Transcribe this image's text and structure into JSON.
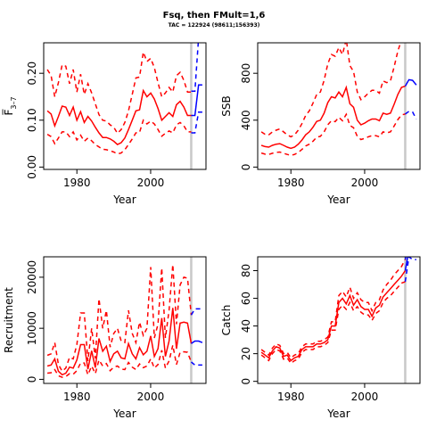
{
  "title": "Fsq, then FMult=1,6",
  "subtitle": "TAC = 122924 (98611;156393)",
  "colors": {
    "history": "#ff0000",
    "projection": "#0000ff",
    "divider": "#c8c8c8"
  },
  "chart_data": [
    {
      "type": "line",
      "id": "fbar",
      "xlabel": "Year",
      "ylabel": "F̅",
      "ylabel_sub": "3–7",
      "xlim": [
        1971,
        2015
      ],
      "ylim": [
        -0.005,
        0.265
      ],
      "x_ticks": [
        1980,
        2000
      ],
      "y_ticks": [
        0.0,
        0.1,
        0.2
      ],
      "y_tick_labels": [
        "0.00",
        "0.10",
        "0.20"
      ],
      "divider_x": 2011,
      "history": {
        "x": [
          1972,
          1973,
          1974,
          1975,
          1976,
          1977,
          1978,
          1979,
          1980,
          1981,
          1982,
          1983,
          1984,
          1985,
          1986,
          1987,
          1988,
          1989,
          1990,
          1991,
          1992,
          1993,
          1994,
          1995,
          1996,
          1997,
          1998,
          1999,
          2000,
          2001,
          2002,
          2003,
          2004,
          2005,
          2006,
          2007,
          2008,
          2009,
          2010,
          2011
        ],
        "mid": [
          0.12,
          0.113,
          0.088,
          0.108,
          0.13,
          0.128,
          0.11,
          0.128,
          0.1,
          0.118,
          0.095,
          0.108,
          0.098,
          0.085,
          0.073,
          0.063,
          0.063,
          0.06,
          0.055,
          0.048,
          0.052,
          0.062,
          0.08,
          0.1,
          0.12,
          0.122,
          0.163,
          0.15,
          0.158,
          0.145,
          0.125,
          0.1,
          0.108,
          0.116,
          0.108,
          0.133,
          0.14,
          0.128,
          0.11,
          0.11
        ],
        "lower": [
          0.07,
          0.065,
          0.05,
          0.062,
          0.075,
          0.075,
          0.065,
          0.075,
          0.058,
          0.068,
          0.055,
          0.062,
          0.056,
          0.048,
          0.043,
          0.038,
          0.037,
          0.035,
          0.032,
          0.028,
          0.03,
          0.037,
          0.048,
          0.06,
          0.073,
          0.074,
          0.1,
          0.092,
          0.098,
          0.092,
          0.08,
          0.066,
          0.072,
          0.077,
          0.073,
          0.09,
          0.095,
          0.088,
          0.075,
          0.075
        ],
        "upper": [
          0.208,
          0.195,
          0.15,
          0.18,
          0.218,
          0.215,
          0.178,
          0.208,
          0.16,
          0.198,
          0.155,
          0.178,
          0.158,
          0.135,
          0.112,
          0.1,
          0.098,
          0.09,
          0.085,
          0.072,
          0.08,
          0.095,
          0.12,
          0.155,
          0.19,
          0.192,
          0.245,
          0.225,
          0.232,
          0.212,
          0.18,
          0.15,
          0.158,
          0.17,
          0.16,
          0.195,
          0.202,
          0.185,
          0.16,
          0.16
        ]
      },
      "projection": {
        "x": [
          2011,
          2012,
          2013,
          2014
        ],
        "mid": [
          0.11,
          0.11,
          0.175,
          0.175
        ],
        "lower": [
          0.073,
          0.073,
          0.117,
          0.117
        ],
        "upper": [
          0.162,
          0.162,
          0.275,
          0.275
        ]
      }
    },
    {
      "type": "line",
      "id": "ssb",
      "xlabel": "Year",
      "ylabel": "SSB",
      "xlim": [
        1971,
        2015
      ],
      "ylim": [
        -20,
        1060
      ],
      "x_ticks": [
        1980,
        2000
      ],
      "y_ticks": [
        0,
        400,
        800
      ],
      "y_tick_labels": [
        "0",
        "400",
        "800"
      ],
      "divider_x": 2011,
      "history": {
        "x": [
          1972,
          1973,
          1974,
          1975,
          1976,
          1977,
          1978,
          1979,
          1980,
          1981,
          1982,
          1983,
          1984,
          1985,
          1986,
          1987,
          1988,
          1989,
          1990,
          1991,
          1992,
          1993,
          1994,
          1995,
          1996,
          1997,
          1998,
          1999,
          2000,
          2001,
          2002,
          2003,
          2004,
          2005,
          2006,
          2007,
          2008,
          2009,
          2010,
          2011
        ],
        "mid": [
          185,
          175,
          170,
          185,
          195,
          200,
          185,
          170,
          160,
          170,
          195,
          230,
          275,
          300,
          340,
          390,
          400,
          460,
          550,
          600,
          590,
          640,
          600,
          680,
          540,
          510,
          400,
          360,
          375,
          395,
          410,
          410,
          395,
          460,
          450,
          460,
          535,
          620,
          680,
          690
        ],
        "lower": [
          120,
          110,
          108,
          118,
          125,
          128,
          118,
          108,
          100,
          108,
          125,
          150,
          180,
          195,
          220,
          255,
          262,
          300,
          360,
          395,
          388,
          425,
          395,
          450,
          355,
          335,
          262,
          235,
          245,
          258,
          268,
          268,
          258,
          300,
          292,
          300,
          350,
          405,
          445,
          452
        ],
        "upper": [
          300,
          280,
          275,
          300,
          315,
          325,
          300,
          275,
          258,
          275,
          315,
          370,
          440,
          480,
          545,
          620,
          640,
          740,
          880,
          960,
          945,
          1020,
          960,
          1090,
          865,
          815,
          640,
          575,
          600,
          630,
          655,
          655,
          630,
          735,
          720,
          735,
          855,
          990,
          1085,
          1100
        ]
      },
      "projection": {
        "x": [
          2011,
          2012,
          2013,
          2014
        ],
        "mid": [
          690,
          745,
          740,
          700
        ],
        "lower": [
          452,
          475,
          470,
          410
        ],
        "upper": [
          1100,
          1200,
          1200,
          1150
        ]
      }
    },
    {
      "type": "line",
      "id": "recruitment",
      "xlabel": "Year",
      "ylabel": "Recruitment",
      "xlim": [
        1971,
        2015
      ],
      "ylim": [
        -800,
        24000
      ],
      "x_ticks": [
        1980,
        2000
      ],
      "y_ticks": [
        0,
        10000,
        20000
      ],
      "y_tick_labels": [
        "0",
        "10000",
        "20000"
      ],
      "divider_x": 2011,
      "history": {
        "x": [
          1972,
          1973,
          1974,
          1975,
          1976,
          1977,
          1978,
          1979,
          1980,
          1981,
          1982,
          1983,
          1984,
          1985,
          1986,
          1987,
          1988,
          1989,
          1990,
          1991,
          1992,
          1993,
          1994,
          1995,
          1996,
          1997,
          1998,
          1999,
          2000,
          2001,
          2002,
          2003,
          2004,
          2005,
          2006,
          2007,
          2008,
          2009,
          2010,
          2011
        ],
        "mid": [
          2600,
          2800,
          4000,
          1600,
          900,
          1200,
          2400,
          2200,
          3800,
          6800,
          6800,
          2000,
          5600,
          2300,
          8000,
          5500,
          6500,
          3500,
          5000,
          5500,
          4200,
          4000,
          7000,
          5000,
          4000,
          6200,
          4800,
          5500,
          8500,
          4500,
          6000,
          12000,
          4500,
          7500,
          14000,
          6000,
          11000,
          11200,
          11000,
          7000
        ],
        "lower": [
          1200,
          1300,
          1900,
          700,
          400,
          550,
          1100,
          1000,
          1700,
          3200,
          3200,
          900,
          2600,
          1100,
          3800,
          2600,
          3100,
          1700,
          2400,
          2600,
          2000,
          1900,
          3300,
          2400,
          1900,
          3000,
          2300,
          2600,
          4000,
          2200,
          2900,
          5700,
          2200,
          3600,
          6700,
          2900,
          5300,
          5400,
          5300,
          3400
        ],
        "upper": [
          4700,
          5000,
          7200,
          2900,
          1600,
          2200,
          4300,
          4000,
          6800,
          13000,
          13000,
          3600,
          10000,
          4100,
          15800,
          10000,
          13500,
          6300,
          9000,
          10000,
          7500,
          7200,
          13500,
          9000,
          7200,
          11200,
          8600,
          10000,
          22000,
          8100,
          10800,
          21800,
          8100,
          13500,
          22500,
          10800,
          18500,
          20000,
          19800,
          12600
        ]
      },
      "projection": {
        "x": [
          2011,
          2012,
          2013,
          2014
        ],
        "mid": [
          7000,
          7500,
          7500,
          7200
        ],
        "lower": [
          3400,
          2800,
          2800,
          2800
        ],
        "upper": [
          12600,
          13800,
          13800,
          13800
        ]
      }
    },
    {
      "type": "line",
      "id": "catch",
      "xlabel": "Year",
      "ylabel": "Catch",
      "xlim": [
        1971,
        2015
      ],
      "ylim": [
        -1.5,
        90
      ],
      "x_ticks": [
        1980,
        2000
      ],
      "y_ticks": [
        0,
        20,
        40,
        60,
        80
      ],
      "y_tick_labels": [
        "0",
        "20",
        "40",
        "60",
        "80"
      ],
      "divider_x": 2011,
      "history": {
        "x": [
          1972,
          1973,
          1974,
          1975,
          1976,
          1977,
          1978,
          1979,
          1980,
          1981,
          1982,
          1983,
          1984,
          1985,
          1986,
          1987,
          1988,
          1989,
          1990,
          1991,
          1992,
          1993,
          1994,
          1995,
          1996,
          1997,
          1998,
          1999,
          2000,
          2001,
          2002,
          2003,
          2004,
          2005,
          2006,
          2007,
          2008,
          2009,
          2010,
          2011
        ],
        "mid": [
          21,
          19,
          17,
          22,
          25,
          24,
          18,
          19,
          15,
          17,
          18,
          23,
          25,
          25,
          25,
          27,
          27,
          28,
          30,
          40,
          40,
          57,
          60,
          56,
          62,
          55,
          59,
          54,
          52,
          52,
          47,
          53,
          55,
          61,
          64,
          67,
          70,
          73,
          76,
          80
        ],
        "lower": [
          19,
          17,
          15,
          20,
          23,
          22,
          16,
          17,
          13,
          15,
          16,
          21,
          23,
          23,
          23,
          25,
          25,
          26,
          28,
          37,
          37,
          52,
          55,
          52,
          57,
          51,
          54,
          50,
          48,
          48,
          44,
          49,
          51,
          57,
          60,
          62,
          65,
          68,
          71,
          72
        ],
        "upper": [
          23,
          21,
          19,
          24,
          27,
          26,
          20,
          21,
          17,
          19,
          20,
          25,
          27,
          27,
          27,
          29,
          29,
          30,
          32,
          43,
          43,
          62,
          65,
          61,
          68,
          60,
          64,
          59,
          57,
          57,
          51,
          57,
          59,
          66,
          70,
          73,
          77,
          80,
          83,
          88
        ]
      },
      "projection": {
        "x": [
          2011,
          2012,
          2013,
          2014
        ],
        "mid": [
          80,
          95,
          100,
          100
        ],
        "lower": [
          72,
          90,
          88,
          88
        ],
        "upper": [
          88,
          102,
          115,
          115
        ]
      }
    }
  ]
}
